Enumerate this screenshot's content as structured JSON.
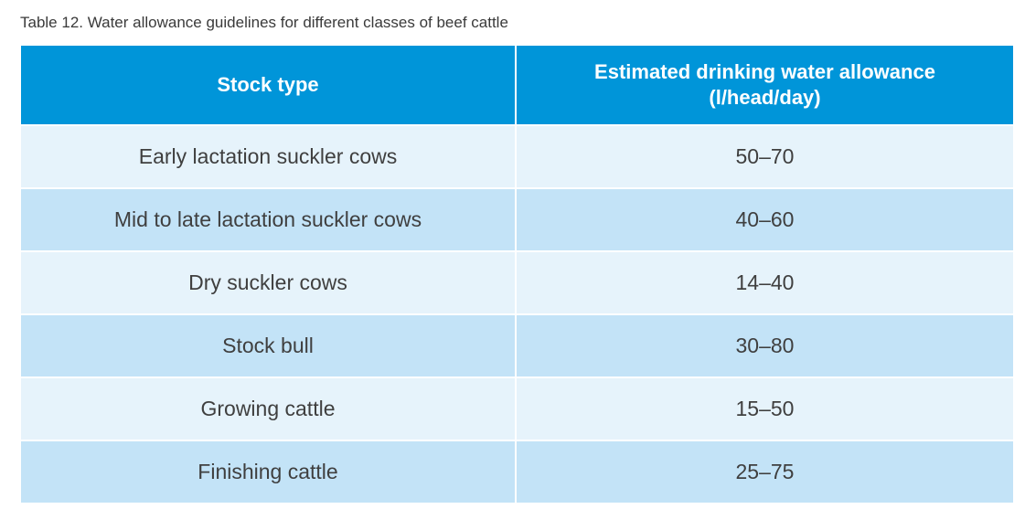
{
  "caption": "Table 12. Water allowance guidelines for different classes of beef cattle",
  "table": {
    "headers": {
      "col1": "Stock type",
      "col2_line1": "Estimated drinking water allowance",
      "col2_line2": "(l/head/day)"
    },
    "rows": [
      {
        "stock": "Early lactation suckler cows",
        "allowance": "50–70"
      },
      {
        "stock": "Mid to late lactation suckler cows",
        "allowance": "40–60"
      },
      {
        "stock": "Dry suckler cows",
        "allowance": "14–40"
      },
      {
        "stock": "Stock bull",
        "allowance": "30–80"
      },
      {
        "stock": "Growing cattle",
        "allowance": "15–50"
      },
      {
        "stock": "Finishing cattle",
        "allowance": "25–75"
      }
    ]
  },
  "colors": {
    "header_bg": "#0095d9",
    "row_light": "#e6f3fb",
    "row_dark": "#c3e3f7"
  }
}
